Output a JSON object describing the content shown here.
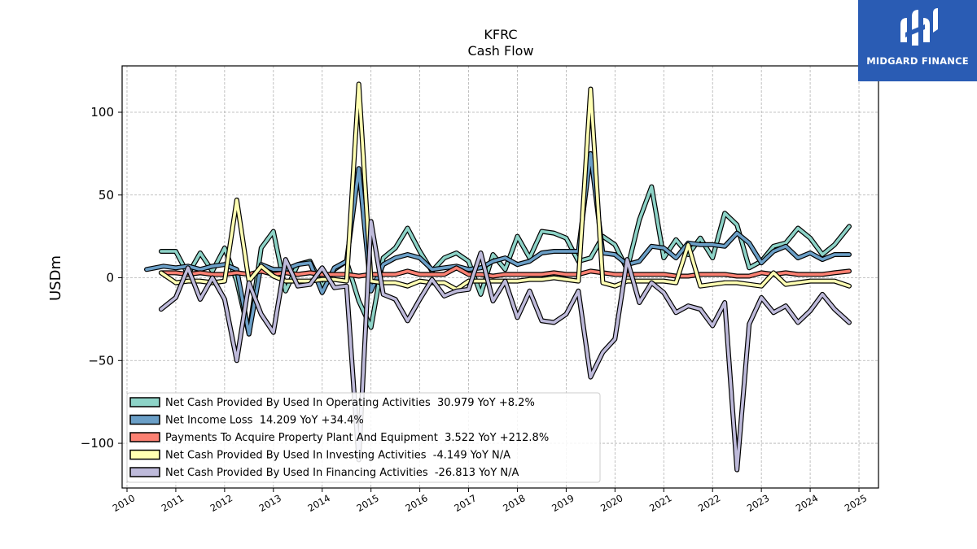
{
  "logo": {
    "text": "MIDGARD FINANCE",
    "icon": "midgard-logo-icon",
    "color": "#2a5cb4"
  },
  "chart_data": {
    "type": "line",
    "title": "KFRC",
    "subtitle": "Cash Flow",
    "xlabel": "",
    "ylabel": "USDm",
    "xlim": [
      2009.9,
      2025.4
    ],
    "ylim": [
      -127,
      128
    ],
    "x_ticks": [
      "2010",
      "2011",
      "2012",
      "2013",
      "2014",
      "2015",
      "2016",
      "2017",
      "2018",
      "2019",
      "2020",
      "2021",
      "2022",
      "2023",
      "2024",
      "2025"
    ],
    "y_ticks": [
      -100,
      -50,
      0,
      50,
      100
    ],
    "y_tick_labels": [
      "−100",
      "−50",
      "0",
      "50",
      "100"
    ],
    "grid": true,
    "legend_position": "lower-left",
    "series": [
      {
        "name": "Net Cash Provided By Used In Operating Activities  30.979 YoY +8.2%",
        "color": "#8dd3c7",
        "points": [
          [
            2010.7,
            16
          ],
          [
            2011.0,
            16
          ],
          [
            2011.25,
            2
          ],
          [
            2011.5,
            15
          ],
          [
            2011.75,
            4
          ],
          [
            2012.0,
            18
          ],
          [
            2012.25,
            -2
          ],
          [
            2012.5,
            -34
          ],
          [
            2012.75,
            18
          ],
          [
            2013.0,
            28
          ],
          [
            2013.25,
            -8
          ],
          [
            2013.5,
            8
          ],
          [
            2013.75,
            10
          ],
          [
            2014.0,
            -5
          ],
          [
            2014.25,
            5
          ],
          [
            2014.5,
            10
          ],
          [
            2014.75,
            -14
          ],
          [
            2015.0,
            -30
          ],
          [
            2015.25,
            12
          ],
          [
            2015.5,
            18
          ],
          [
            2015.75,
            30
          ],
          [
            2016.0,
            16
          ],
          [
            2016.25,
            4
          ],
          [
            2016.5,
            12
          ],
          [
            2016.75,
            15
          ],
          [
            2017.0,
            10
          ],
          [
            2017.25,
            -10
          ],
          [
            2017.5,
            14
          ],
          [
            2017.75,
            5
          ],
          [
            2018.0,
            25
          ],
          [
            2018.25,
            12
          ],
          [
            2018.5,
            28
          ],
          [
            2018.75,
            27
          ],
          [
            2019.0,
            24
          ],
          [
            2019.25,
            10
          ],
          [
            2019.5,
            12
          ],
          [
            2019.75,
            25
          ],
          [
            2020.0,
            20
          ],
          [
            2020.25,
            5
          ],
          [
            2020.5,
            35
          ],
          [
            2020.75,
            55
          ],
          [
            2021.0,
            12
          ],
          [
            2021.25,
            23
          ],
          [
            2021.5,
            14
          ],
          [
            2021.75,
            24
          ],
          [
            2022.0,
            12
          ],
          [
            2022.25,
            39
          ],
          [
            2022.5,
            32
          ],
          [
            2022.75,
            6
          ],
          [
            2023.0,
            10
          ],
          [
            2023.25,
            19
          ],
          [
            2023.5,
            21
          ],
          [
            2023.75,
            30
          ],
          [
            2024.0,
            24
          ],
          [
            2024.25,
            14
          ],
          [
            2024.5,
            20
          ],
          [
            2024.8,
            31
          ]
        ]
      },
      {
        "name": "Net Income Loss  14.209 YoY +34.4%",
        "color": "#6b9fc7",
        "points": [
          [
            2010.4,
            5
          ],
          [
            2010.75,
            7
          ],
          [
            2011.0,
            6
          ],
          [
            2011.25,
            7
          ],
          [
            2011.5,
            5
          ],
          [
            2011.75,
            7
          ],
          [
            2012.0,
            8
          ],
          [
            2012.25,
            5
          ],
          [
            2012.5,
            -34
          ],
          [
            2012.75,
            8
          ],
          [
            2013.0,
            5
          ],
          [
            2013.25,
            5
          ],
          [
            2013.5,
            8
          ],
          [
            2013.75,
            9
          ],
          [
            2014.0,
            -9
          ],
          [
            2014.25,
            6
          ],
          [
            2014.5,
            10
          ],
          [
            2014.75,
            66
          ],
          [
            2015.0,
            -8
          ],
          [
            2015.25,
            8
          ],
          [
            2015.5,
            12
          ],
          [
            2015.75,
            14
          ],
          [
            2016.0,
            12
          ],
          [
            2016.25,
            5
          ],
          [
            2016.5,
            6
          ],
          [
            2016.75,
            7
          ],
          [
            2017.0,
            5
          ],
          [
            2017.25,
            6
          ],
          [
            2017.5,
            10
          ],
          [
            2017.75,
            12
          ],
          [
            2018.0,
            8
          ],
          [
            2018.25,
            10
          ],
          [
            2018.5,
            15
          ],
          [
            2018.75,
            16
          ],
          [
            2019.0,
            16
          ],
          [
            2019.25,
            16
          ],
          [
            2019.5,
            75
          ],
          [
            2019.75,
            15
          ],
          [
            2020.0,
            14
          ],
          [
            2020.25,
            8
          ],
          [
            2020.5,
            10
          ],
          [
            2020.75,
            19
          ],
          [
            2021.0,
            18
          ],
          [
            2021.25,
            12
          ],
          [
            2021.5,
            21
          ],
          [
            2021.75,
            20
          ],
          [
            2022.0,
            20
          ],
          [
            2022.25,
            19
          ],
          [
            2022.5,
            27
          ],
          [
            2022.75,
            21
          ],
          [
            2023.0,
            9
          ],
          [
            2023.25,
            16
          ],
          [
            2023.5,
            19
          ],
          [
            2023.75,
            12
          ],
          [
            2024.0,
            15
          ],
          [
            2024.25,
            11
          ],
          [
            2024.5,
            14
          ],
          [
            2024.8,
            14
          ]
        ]
      },
      {
        "name": "Payments To Acquire Property Plant And Equipment  3.522 YoY +212.8%",
        "color": "#fb8072",
        "points": [
          [
            2010.7,
            3
          ],
          [
            2011.0,
            3
          ],
          [
            2011.25,
            2
          ],
          [
            2011.5,
            3
          ],
          [
            2011.75,
            2
          ],
          [
            2012.0,
            2
          ],
          [
            2012.25,
            3
          ],
          [
            2012.5,
            2
          ],
          [
            2012.75,
            4
          ],
          [
            2013.0,
            2
          ],
          [
            2013.25,
            3
          ],
          [
            2013.5,
            2
          ],
          [
            2013.75,
            3
          ],
          [
            2014.0,
            2
          ],
          [
            2014.25,
            2
          ],
          [
            2014.5,
            2
          ],
          [
            2014.75,
            1
          ],
          [
            2015.0,
            2
          ],
          [
            2015.25,
            2
          ],
          [
            2015.5,
            2
          ],
          [
            2015.75,
            4
          ],
          [
            2016.0,
            2
          ],
          [
            2016.25,
            2
          ],
          [
            2016.5,
            2
          ],
          [
            2016.75,
            6
          ],
          [
            2017.0,
            2
          ],
          [
            2017.25,
            2
          ],
          [
            2017.5,
            1
          ],
          [
            2017.75,
            2
          ],
          [
            2018.0,
            2
          ],
          [
            2018.25,
            2
          ],
          [
            2018.5,
            2
          ],
          [
            2018.75,
            3
          ],
          [
            2019.0,
            2
          ],
          [
            2019.25,
            2
          ],
          [
            2019.5,
            4
          ],
          [
            2019.75,
            3
          ],
          [
            2020.0,
            2
          ],
          [
            2020.25,
            2
          ],
          [
            2020.5,
            2
          ],
          [
            2020.75,
            2
          ],
          [
            2021.0,
            2
          ],
          [
            2021.25,
            1
          ],
          [
            2021.5,
            1
          ],
          [
            2021.75,
            2
          ],
          [
            2022.0,
            2
          ],
          [
            2022.25,
            2
          ],
          [
            2022.5,
            1
          ],
          [
            2022.75,
            1
          ],
          [
            2023.0,
            3
          ],
          [
            2023.25,
            2
          ],
          [
            2023.5,
            3
          ],
          [
            2023.75,
            2
          ],
          [
            2024.0,
            2
          ],
          [
            2024.25,
            2
          ],
          [
            2024.5,
            3
          ],
          [
            2024.8,
            4
          ]
        ]
      },
      {
        "name": "Net Cash Provided By Used In Investing Activities  -4.149 YoY N/A",
        "color": "#ffffb3",
        "points": [
          [
            2010.7,
            3
          ],
          [
            2011.0,
            -3
          ],
          [
            2011.25,
            -2
          ],
          [
            2011.5,
            -2
          ],
          [
            2011.75,
            -3
          ],
          [
            2012.0,
            -2
          ],
          [
            2012.25,
            47
          ],
          [
            2012.5,
            -2
          ],
          [
            2012.75,
            7
          ],
          [
            2013.0,
            1
          ],
          [
            2013.25,
            -2
          ],
          [
            2013.5,
            -2
          ],
          [
            2013.75,
            -2
          ],
          [
            2014.0,
            -1
          ],
          [
            2014.25,
            -1
          ],
          [
            2014.5,
            -2
          ],
          [
            2014.75,
            117
          ],
          [
            2015.0,
            -2
          ],
          [
            2015.25,
            -3
          ],
          [
            2015.5,
            -3
          ],
          [
            2015.75,
            -5
          ],
          [
            2016.0,
            -2
          ],
          [
            2016.25,
            -3
          ],
          [
            2016.5,
            -3
          ],
          [
            2016.75,
            -7
          ],
          [
            2017.0,
            -2
          ],
          [
            2017.25,
            -2
          ],
          [
            2017.5,
            -2
          ],
          [
            2017.75,
            -2
          ],
          [
            2018.0,
            -2
          ],
          [
            2018.25,
            -1
          ],
          [
            2018.5,
            -1
          ],
          [
            2018.75,
            0
          ],
          [
            2019.0,
            -1
          ],
          [
            2019.25,
            -2
          ],
          [
            2019.5,
            114
          ],
          [
            2019.75,
            -3
          ],
          [
            2020.0,
            -5
          ],
          [
            2020.25,
            -2
          ],
          [
            2020.5,
            -2
          ],
          [
            2020.75,
            -2
          ],
          [
            2021.0,
            -2
          ],
          [
            2021.25,
            -3
          ],
          [
            2021.5,
            20
          ],
          [
            2021.75,
            -5
          ],
          [
            2022.0,
            -4
          ],
          [
            2022.25,
            -3
          ],
          [
            2022.5,
            -3
          ],
          [
            2022.75,
            -4
          ],
          [
            2023.0,
            -5
          ],
          [
            2023.25,
            3
          ],
          [
            2023.5,
            -4
          ],
          [
            2023.75,
            -3
          ],
          [
            2024.0,
            -2
          ],
          [
            2024.25,
            -2
          ],
          [
            2024.5,
            -2
          ],
          [
            2024.8,
            -5
          ]
        ]
      },
      {
        "name": "Net Cash Provided By Used In Financing Activities  -26.813 YoY N/A",
        "color": "#bebada",
        "points": [
          [
            2010.7,
            -19
          ],
          [
            2011.0,
            -12
          ],
          [
            2011.25,
            6
          ],
          [
            2011.5,
            -13
          ],
          [
            2011.75,
            0
          ],
          [
            2012.0,
            -13
          ],
          [
            2012.25,
            -50
          ],
          [
            2012.5,
            -3
          ],
          [
            2012.75,
            -22
          ],
          [
            2013.0,
            -33
          ],
          [
            2013.25,
            11
          ],
          [
            2013.5,
            -5
          ],
          [
            2013.75,
            -4
          ],
          [
            2014.0,
            6
          ],
          [
            2014.25,
            -6
          ],
          [
            2014.5,
            -5
          ],
          [
            2014.75,
            -110
          ],
          [
            2015.0,
            34
          ],
          [
            2015.25,
            -10
          ],
          [
            2015.5,
            -13
          ],
          [
            2015.75,
            -26
          ],
          [
            2016.0,
            -13
          ],
          [
            2016.25,
            -1
          ],
          [
            2016.5,
            -11
          ],
          [
            2016.75,
            -8
          ],
          [
            2017.0,
            -7
          ],
          [
            2017.25,
            15
          ],
          [
            2017.5,
            -14
          ],
          [
            2017.75,
            -2
          ],
          [
            2018.0,
            -24
          ],
          [
            2018.25,
            -8
          ],
          [
            2018.5,
            -26
          ],
          [
            2018.75,
            -27
          ],
          [
            2019.0,
            -22
          ],
          [
            2019.25,
            -8
          ],
          [
            2019.5,
            -60
          ],
          [
            2019.75,
            -45
          ],
          [
            2020.0,
            -37
          ],
          [
            2020.25,
            11
          ],
          [
            2020.5,
            -15
          ],
          [
            2020.75,
            -3
          ],
          [
            2021.0,
            -9
          ],
          [
            2021.25,
            -21
          ],
          [
            2021.5,
            -17
          ],
          [
            2021.75,
            -19
          ],
          [
            2022.0,
            -29
          ],
          [
            2022.25,
            -15
          ],
          [
            2022.5,
            -116
          ],
          [
            2022.75,
            -28
          ],
          [
            2023.0,
            -12
          ],
          [
            2023.25,
            -21
          ],
          [
            2023.5,
            -17
          ],
          [
            2023.75,
            -27
          ],
          [
            2024.0,
            -20
          ],
          [
            2024.25,
            -10
          ],
          [
            2024.5,
            -19
          ],
          [
            2024.8,
            -27
          ]
        ]
      }
    ]
  }
}
